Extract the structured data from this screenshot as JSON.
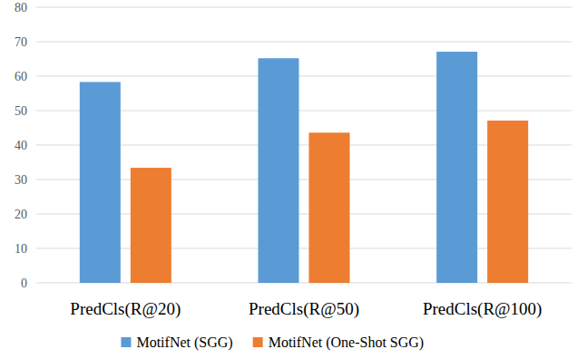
{
  "chart_data": {
    "type": "bar",
    "categories": [
      "PredCls(R@20)",
      "PredCls(R@50)",
      "PredCls(R@100)"
    ],
    "series": [
      {
        "name": "MotifNet (SGG)",
        "color": "#5b9bd5",
        "values": [
          58.3,
          65.2,
          67.1
        ]
      },
      {
        "name": "MotifNet (One-Shot SGG)",
        "color": "#ed7d31",
        "values": [
          33.4,
          43.6,
          47.1
        ]
      }
    ],
    "ylim": [
      0,
      80
    ],
    "yticks": [
      0,
      10,
      20,
      30,
      40,
      50,
      60,
      70,
      80
    ],
    "grid": true,
    "legend": "bottom"
  }
}
